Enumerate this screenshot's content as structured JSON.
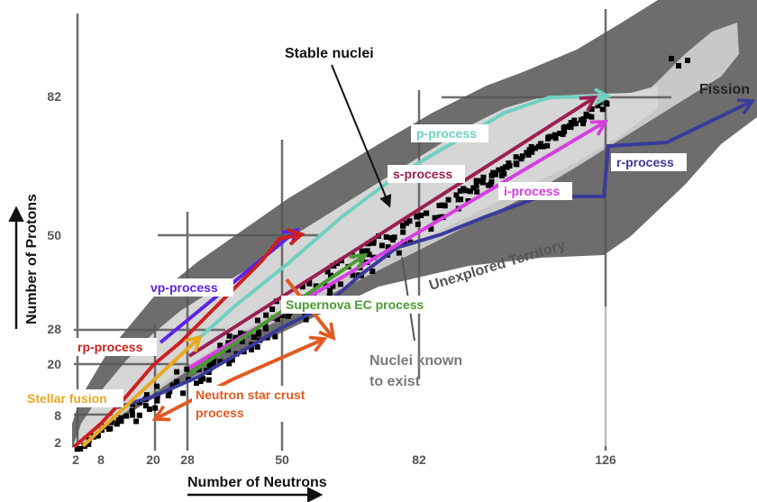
{
  "axes": {
    "xlabel": "Number of Neutrons",
    "ylabel": "Number of Protons",
    "x_ticks": [
      "2",
      "8",
      "20",
      "28",
      "50",
      "82",
      "126"
    ],
    "y_ticks": [
      "2",
      "8",
      "20",
      "28",
      "50",
      "82"
    ]
  },
  "labels": {
    "stable_nuclei": "Stable nuclei",
    "fission": "Fission",
    "unexplored": "Unexplored Territory",
    "known_line1": "Nuclei known",
    "known_line2": "to exist",
    "neutron_star_line1": "Neutron star crust",
    "neutron_star_line2": "process"
  },
  "processes": [
    {
      "id": "p-process",
      "label": "p-process",
      "color": "#6fd0c0"
    },
    {
      "id": "s-process",
      "label": "s-process",
      "color": "#9a1f52"
    },
    {
      "id": "i-process",
      "label": "i-process",
      "color": "#d63ee0"
    },
    {
      "id": "r-process",
      "label": "r-process",
      "color": "#3a3a9a"
    },
    {
      "id": "vp-process",
      "label": "νp-process",
      "color": "#5a23e8"
    },
    {
      "id": "rp-process",
      "label": "rp-process",
      "color": "#cc1f1f"
    },
    {
      "id": "supernova-ec",
      "label": "Supernova EC process",
      "color": "#4a9a32"
    },
    {
      "id": "stellar-fusion",
      "label": "Stellar fusion",
      "color": "#e8a820"
    },
    {
      "id": "neutron-star-crust",
      "label": "Neutron star crust process",
      "color": "#e05a22"
    }
  ],
  "colors": {
    "unexplored_region": "#6d6d6d",
    "known_region": "#c8c8c8",
    "stable_nuclei": "#000000",
    "magic_lines": "#555555"
  }
}
